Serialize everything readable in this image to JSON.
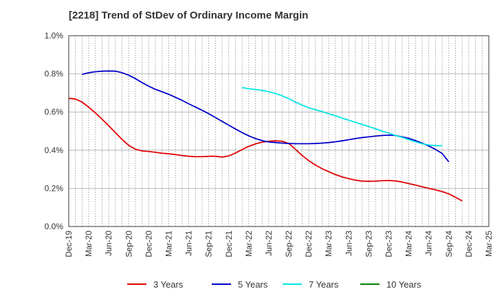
{
  "title": "[2218]  Trend of StDev of Ordinary Income Margin",
  "chart_data": {
    "type": "line",
    "title": "[2218]  Trend of StDev of Ordinary Income Margin",
    "xlabel": "",
    "ylabel": "",
    "x_tick_labels": [
      "Dec-19",
      "Mar-20",
      "Jun-20",
      "Sep-20",
      "Dec-20",
      "Mar-21",
      "Jun-21",
      "Sep-21",
      "Dec-21",
      "Mar-22",
      "Jun-22",
      "Sep-22",
      "Dec-22",
      "Mar-23",
      "Jun-23",
      "Sep-23",
      "Dec-23",
      "Mar-24",
      "Jun-24",
      "Sep-24",
      "Dec-24",
      "Mar-25"
    ],
    "y_tick_labels": [
      "0.0%",
      "0.2%",
      "0.4%",
      "0.6%",
      "0.8%",
      "1.0%"
    ],
    "y_ticks": [
      0.0,
      0.2,
      0.4,
      0.6,
      0.8,
      1.0
    ],
    "ylim": [
      0.0,
      1.0
    ],
    "x_range_months": [
      0,
      63
    ],
    "grid": "vertical dotted monthly, horizontal solid",
    "legend_position": "bottom",
    "series": [
      {
        "name": "3 Years",
        "color": "#e00000",
        "points": [
          [
            0,
            0.672
          ],
          [
            1,
            0.668
          ],
          [
            2,
            0.652
          ],
          [
            3,
            0.625
          ],
          [
            4,
            0.595
          ],
          [
            5,
            0.562
          ],
          [
            6,
            0.528
          ],
          [
            7,
            0.492
          ],
          [
            8,
            0.456
          ],
          [
            9,
            0.425
          ],
          [
            10,
            0.405
          ],
          [
            11,
            0.396
          ],
          [
            12,
            0.393
          ],
          [
            13,
            0.389
          ],
          [
            14,
            0.384
          ],
          [
            15,
            0.381
          ],
          [
            16,
            0.377
          ],
          [
            17,
            0.372
          ],
          [
            18,
            0.368
          ],
          [
            19,
            0.366
          ],
          [
            20,
            0.366
          ],
          [
            21,
            0.368
          ],
          [
            22,
            0.368
          ],
          [
            23,
            0.364
          ],
          [
            24,
            0.37
          ],
          [
            25,
            0.385
          ],
          [
            26,
            0.403
          ],
          [
            27,
            0.42
          ],
          [
            28,
            0.433
          ],
          [
            29,
            0.442
          ],
          [
            30,
            0.447
          ],
          [
            31,
            0.449
          ],
          [
            32,
            0.447
          ],
          [
            33,
            0.435
          ],
          [
            34,
            0.405
          ],
          [
            35,
            0.372
          ],
          [
            36,
            0.345
          ],
          [
            37,
            0.322
          ],
          [
            38,
            0.303
          ],
          [
            39,
            0.287
          ],
          [
            40,
            0.272
          ],
          [
            41,
            0.26
          ],
          [
            42,
            0.251
          ],
          [
            43,
            0.243
          ],
          [
            44,
            0.238
          ],
          [
            45,
            0.237
          ],
          [
            46,
            0.238
          ],
          [
            47,
            0.24
          ],
          [
            48,
            0.241
          ],
          [
            49,
            0.239
          ],
          [
            50,
            0.233
          ],
          [
            51,
            0.225
          ],
          [
            52,
            0.217
          ],
          [
            53,
            0.208
          ],
          [
            54,
            0.2
          ],
          [
            55,
            0.192
          ],
          [
            56,
            0.183
          ],
          [
            57,
            0.171
          ],
          [
            58,
            0.153
          ],
          [
            59,
            0.134
          ]
        ]
      },
      {
        "name": "5 Years",
        "color": "#0000cc",
        "points": [
          [
            2,
            0.797
          ],
          [
            3,
            0.806
          ],
          [
            4,
            0.811
          ],
          [
            5,
            0.814
          ],
          [
            6,
            0.815
          ],
          [
            7,
            0.814
          ],
          [
            8,
            0.806
          ],
          [
            9,
            0.793
          ],
          [
            10,
            0.775
          ],
          [
            11,
            0.754
          ],
          [
            12,
            0.735
          ],
          [
            13,
            0.719
          ],
          [
            14,
            0.706
          ],
          [
            15,
            0.693
          ],
          [
            16,
            0.677
          ],
          [
            17,
            0.661
          ],
          [
            18,
            0.643
          ],
          [
            19,
            0.626
          ],
          [
            20,
            0.609
          ],
          [
            21,
            0.591
          ],
          [
            22,
            0.571
          ],
          [
            23,
            0.551
          ],
          [
            24,
            0.531
          ],
          [
            25,
            0.511
          ],
          [
            26,
            0.492
          ],
          [
            27,
            0.475
          ],
          [
            28,
            0.461
          ],
          [
            29,
            0.45
          ],
          [
            30,
            0.443
          ],
          [
            31,
            0.44
          ],
          [
            32,
            0.437
          ],
          [
            33,
            0.435
          ],
          [
            34,
            0.434
          ],
          [
            35,
            0.434
          ],
          [
            36,
            0.434
          ],
          [
            37,
            0.435
          ],
          [
            38,
            0.437
          ],
          [
            39,
            0.44
          ],
          [
            40,
            0.444
          ],
          [
            41,
            0.449
          ],
          [
            42,
            0.455
          ],
          [
            43,
            0.461
          ],
          [
            44,
            0.466
          ],
          [
            45,
            0.47
          ],
          [
            46,
            0.474
          ],
          [
            47,
            0.477
          ],
          [
            48,
            0.479
          ],
          [
            49,
            0.477
          ],
          [
            50,
            0.47
          ],
          [
            51,
            0.462
          ],
          [
            52,
            0.45
          ],
          [
            53,
            0.437
          ],
          [
            54,
            0.422
          ],
          [
            55,
            0.404
          ],
          [
            56,
            0.383
          ],
          [
            57,
            0.339
          ]
        ]
      },
      {
        "name": "7 Years",
        "color": "#00e5e5",
        "points": [
          [
            26,
            0.728
          ],
          [
            27,
            0.722
          ],
          [
            28,
            0.718
          ],
          [
            29,
            0.713
          ],
          [
            30,
            0.706
          ],
          [
            31,
            0.697
          ],
          [
            32,
            0.685
          ],
          [
            33,
            0.67
          ],
          [
            34,
            0.652
          ],
          [
            35,
            0.636
          ],
          [
            36,
            0.622
          ],
          [
            37,
            0.612
          ],
          [
            38,
            0.602
          ],
          [
            39,
            0.591
          ],
          [
            40,
            0.58
          ],
          [
            41,
            0.568
          ],
          [
            42,
            0.557
          ],
          [
            43,
            0.546
          ],
          [
            44,
            0.535
          ],
          [
            45,
            0.524
          ],
          [
            46,
            0.512
          ],
          [
            47,
            0.5
          ],
          [
            48,
            0.489
          ],
          [
            49,
            0.477
          ],
          [
            50,
            0.467
          ],
          [
            51,
            0.455
          ],
          [
            52,
            0.444
          ],
          [
            53,
            0.434
          ],
          [
            54,
            0.427
          ],
          [
            55,
            0.424
          ],
          [
            56,
            0.423
          ]
        ]
      },
      {
        "name": "10 Years",
        "color": "#008000",
        "points": []
      }
    ]
  }
}
